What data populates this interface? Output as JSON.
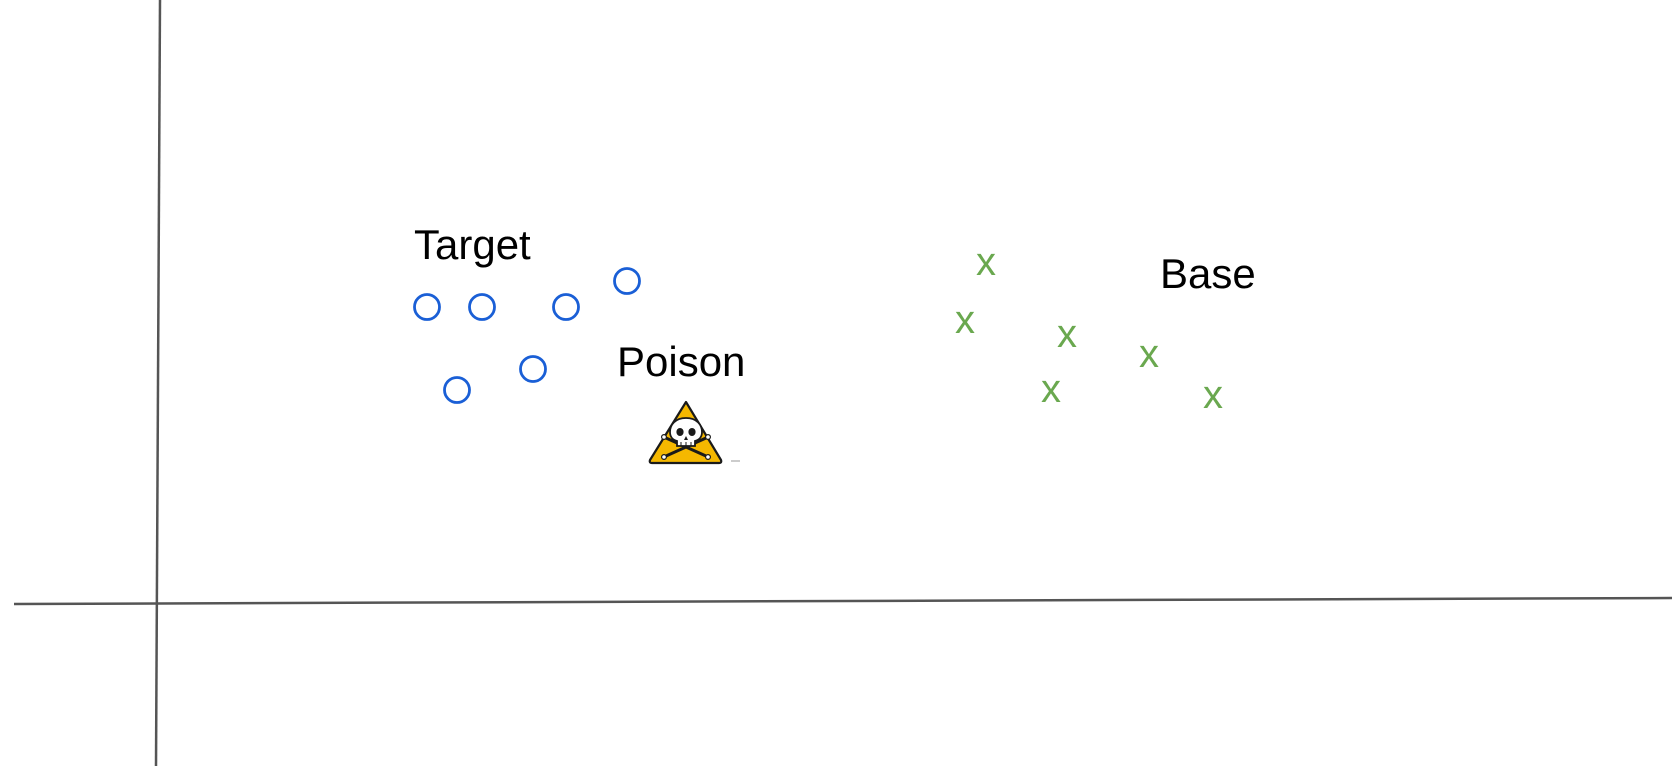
{
  "labels": {
    "target": "Target",
    "poison": "Poison",
    "base": "Base"
  },
  "markers": {
    "base_glyph": "x"
  },
  "colors": {
    "axis": "#555555",
    "target_points": "#1a5fd6",
    "base_points": "#6aa84f",
    "poison_sign_fill": "#f5b800",
    "poison_sign_stroke": "#1a1a1a",
    "text": "#000000"
  },
  "icons": {
    "poison": "skull-and-crossbones-warning-icon"
  }
}
